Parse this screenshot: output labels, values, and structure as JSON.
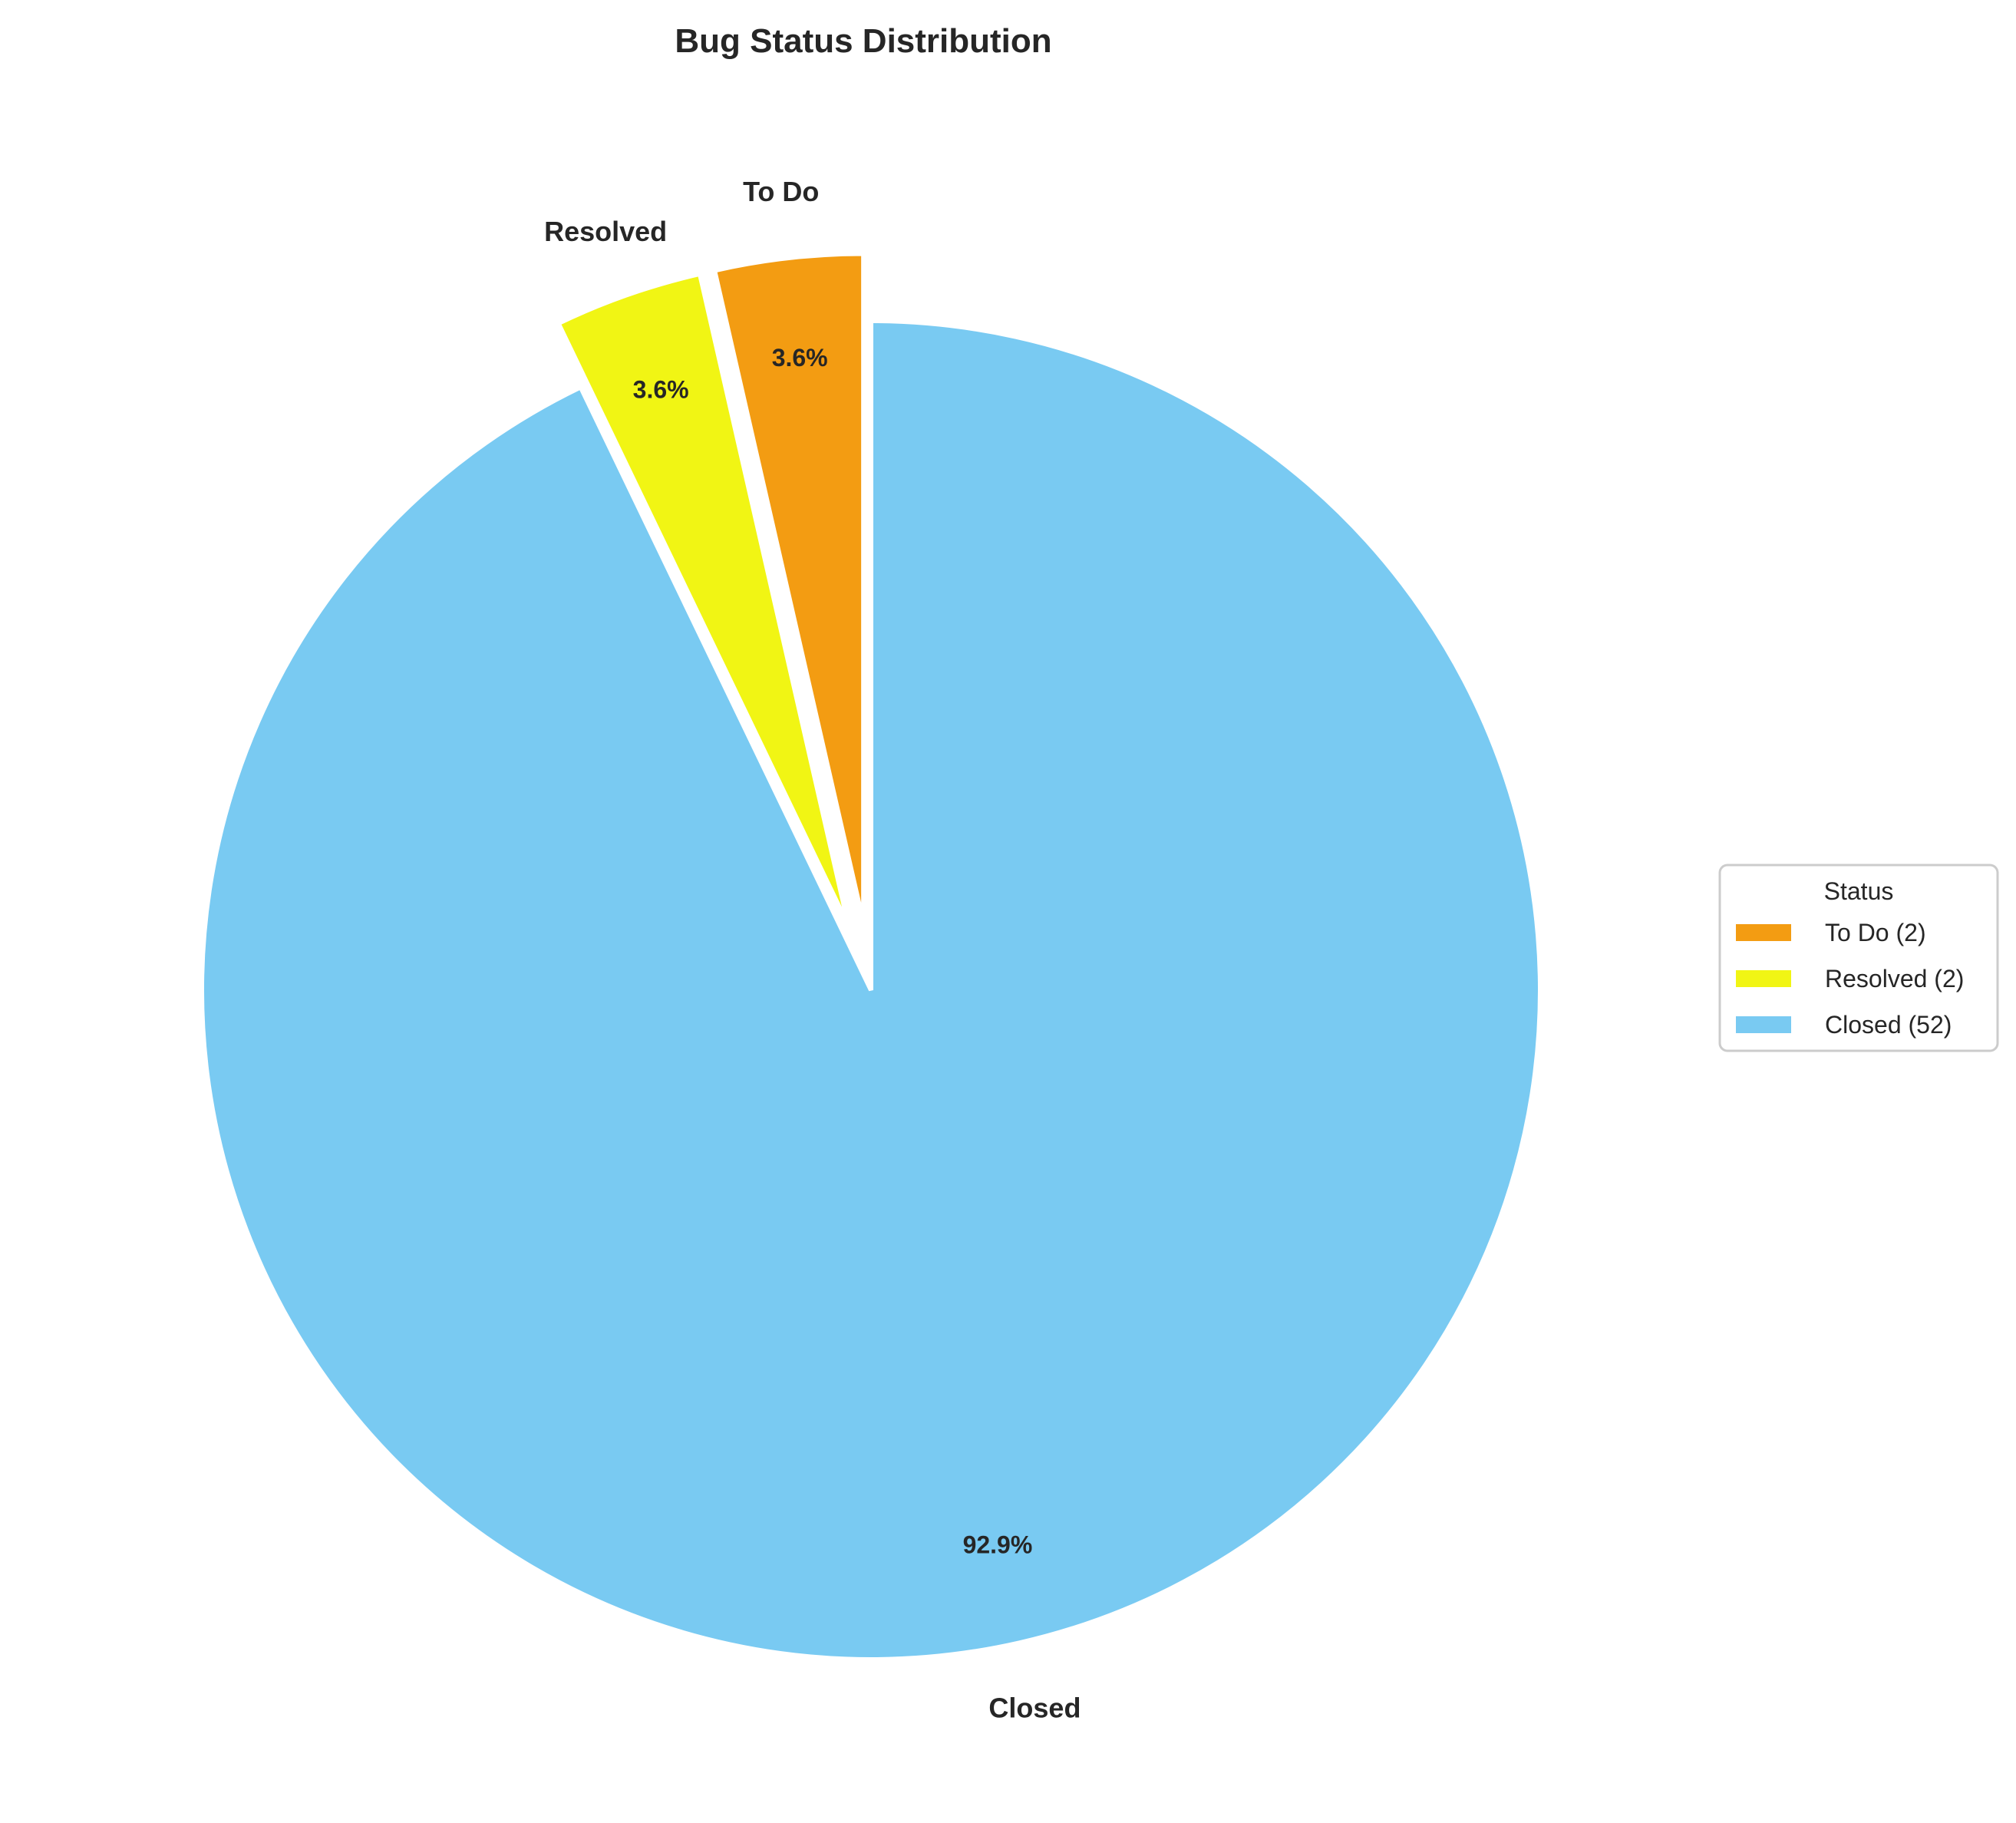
{
  "chart_data": {
    "type": "pie",
    "title": "Bug Status Distribution",
    "slices": [
      {
        "label": "To Do",
        "value": 2,
        "percent_label": "3.6%",
        "legend_label": "To Do (2)",
        "color": "#f39c12",
        "exploded": true
      },
      {
        "label": "Resolved",
        "value": 2,
        "percent_label": "3.6%",
        "legend_label": "Resolved (2)",
        "color": "#f1f514",
        "exploded": true
      },
      {
        "label": "Closed",
        "value": 52,
        "percent_label": "92.9%",
        "legend_label": "Closed (52)",
        "color": "#79caf2",
        "exploded": false
      }
    ],
    "start_angle_deg": 90,
    "direction": "counterclockwise",
    "legend": {
      "title": "Status",
      "placement": "right"
    }
  }
}
